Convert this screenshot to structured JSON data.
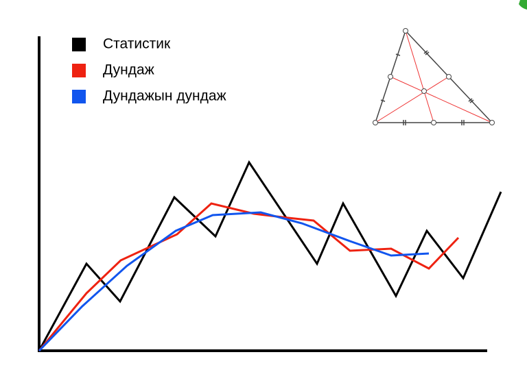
{
  "chart_data": {
    "type": "line",
    "xlim": [
      0,
      653
    ],
    "ylim": [
      0,
      457
    ],
    "series": [
      {
        "name": "Статистик",
        "color": "#000000",
        "x": [
          0,
          69,
          118,
          197,
          257,
          306,
          405,
          443,
          520,
          565,
          618,
          673
        ],
        "values": [
          0,
          127,
          72,
          224,
          167,
          275,
          127,
          215,
          80,
          175,
          106,
          232
        ]
      },
      {
        "name": "Дундаж",
        "color": "#ee2211",
        "x": [
          0,
          69,
          119,
          201,
          251,
          313,
          363,
          400,
          453,
          513,
          568,
          611
        ],
        "values": [
          0,
          84,
          132,
          170,
          215,
          200,
          194,
          190,
          146,
          149,
          120,
          165
        ]
      },
      {
        "name": "Дундажын дундаж",
        "color": "#1155ee",
        "x": [
          0,
          63,
          128,
          199,
          253,
          323,
          383,
          453,
          513,
          568
        ],
        "values": [
          0,
          65,
          124,
          175,
          198,
          202,
          186,
          160,
          139,
          142
        ]
      }
    ]
  }
}
